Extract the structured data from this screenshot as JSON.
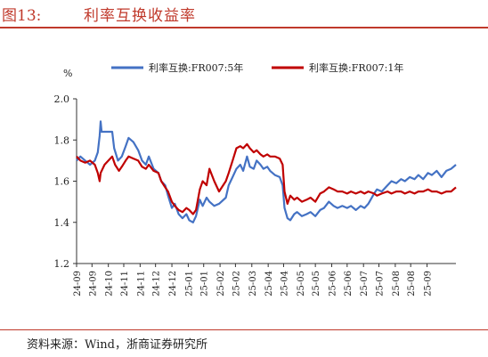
{
  "header": {
    "figure_label": "图13:",
    "title": "利率互换收益率"
  },
  "footer": {
    "source": "资料来源：Wind，浙商证券研究所"
  },
  "colors": {
    "accent": "#c0392b",
    "series_5y": "#4472c4",
    "series_1y": "#c00000"
  },
  "chart_data": {
    "type": "line",
    "ylabel": "%",
    "ylim": [
      1.2,
      2.0
    ],
    "yticks": [
      "2.0",
      "1.8",
      "1.6",
      "1.4",
      "1.2"
    ],
    "xlim": [
      "2024-09-01",
      "2025-09-30"
    ],
    "xticks": [
      "24-09",
      "24-09",
      "24-10",
      "24-11",
      "24-11",
      "24-12",
      "24-12",
      "25-01",
      "25-01",
      "25-02",
      "25-02",
      "25-03",
      "25-04",
      "25-04",
      "25-05",
      "25-05",
      "25-06",
      "25-06",
      "25-07",
      "25-07",
      "25-08",
      "25-08",
      "25-09"
    ],
    "xtick_dates": [
      "2024-09-01",
      "2024-09-17",
      "2024-10-04",
      "2024-10-20",
      "2024-11-06",
      "2024-11-22",
      "2024-12-09",
      "2024-12-26",
      "2025-01-11",
      "2025-01-28",
      "2025-02-13",
      "2025-03-02",
      "2025-03-19",
      "2025-04-04",
      "2025-04-21",
      "2025-05-07",
      "2025-05-24",
      "2025-06-09",
      "2025-06-26",
      "2025-07-12",
      "2025-07-29",
      "2025-08-14",
      "2025-08-31"
    ],
    "grid": false,
    "legend_position": "top",
    "series": [
      {
        "name": "利率互换:FR007:5年",
        "points": [
          [
            "2024-09-01",
            1.7
          ],
          [
            "2024-09-05",
            1.72
          ],
          [
            "2024-09-10",
            1.7
          ],
          [
            "2024-09-15",
            1.68
          ],
          [
            "2024-09-20",
            1.7
          ],
          [
            "2024-09-23",
            1.74
          ],
          [
            "2024-09-25",
            1.82
          ],
          [
            "2024-09-26",
            1.89
          ],
          [
            "2024-09-27",
            1.84
          ],
          [
            "2024-10-01",
            1.84
          ],
          [
            "2024-10-08",
            1.84
          ],
          [
            "2024-10-10",
            1.76
          ],
          [
            "2024-10-14",
            1.7
          ],
          [
            "2024-10-18",
            1.72
          ],
          [
            "2024-10-22",
            1.77
          ],
          [
            "2024-10-25",
            1.81
          ],
          [
            "2024-10-30",
            1.79
          ],
          [
            "2024-11-04",
            1.75
          ],
          [
            "2024-11-08",
            1.7
          ],
          [
            "2024-11-12",
            1.68
          ],
          [
            "2024-11-15",
            1.72
          ],
          [
            "2024-11-20",
            1.66
          ],
          [
            "2024-11-25",
            1.64
          ],
          [
            "2024-11-28",
            1.6
          ],
          [
            "2024-12-02",
            1.58
          ],
          [
            "2024-12-05",
            1.53
          ],
          [
            "2024-12-09",
            1.47
          ],
          [
            "2024-12-12",
            1.49
          ],
          [
            "2024-12-16",
            1.44
          ],
          [
            "2024-12-20",
            1.42
          ],
          [
            "2024-12-24",
            1.44
          ],
          [
            "2024-12-27",
            1.41
          ],
          [
            "2024-12-31",
            1.4
          ],
          [
            "2025-01-03",
            1.43
          ],
          [
            "2025-01-07",
            1.51
          ],
          [
            "2025-01-10",
            1.48
          ],
          [
            "2025-01-14",
            1.52
          ],
          [
            "2025-01-17",
            1.5
          ],
          [
            "2025-01-22",
            1.48
          ],
          [
            "2025-01-27",
            1.49
          ],
          [
            "2025-02-03",
            1.52
          ],
          [
            "2025-02-06",
            1.58
          ],
          [
            "2025-02-10",
            1.62
          ],
          [
            "2025-02-14",
            1.66
          ],
          [
            "2025-02-18",
            1.68
          ],
          [
            "2025-02-21",
            1.65
          ],
          [
            "2025-02-25",
            1.72
          ],
          [
            "2025-02-28",
            1.67
          ],
          [
            "2025-03-04",
            1.66
          ],
          [
            "2025-03-07",
            1.7
          ],
          [
            "2025-03-11",
            1.68
          ],
          [
            "2025-03-14",
            1.66
          ],
          [
            "2025-03-18",
            1.67
          ],
          [
            "2025-03-21",
            1.65
          ],
          [
            "2025-03-26",
            1.63
          ],
          [
            "2025-03-31",
            1.62
          ],
          [
            "2025-04-03",
            1.58
          ],
          [
            "2025-04-05",
            1.47
          ],
          [
            "2025-04-08",
            1.42
          ],
          [
            "2025-04-11",
            1.41
          ],
          [
            "2025-04-15",
            1.44
          ],
          [
            "2025-04-18",
            1.45
          ],
          [
            "2025-04-23",
            1.43
          ],
          [
            "2025-04-28",
            1.44
          ],
          [
            "2025-05-02",
            1.45
          ],
          [
            "2025-05-07",
            1.43
          ],
          [
            "2025-05-12",
            1.46
          ],
          [
            "2025-05-16",
            1.47
          ],
          [
            "2025-05-21",
            1.5
          ],
          [
            "2025-05-26",
            1.48
          ],
          [
            "2025-05-30",
            1.47
          ],
          [
            "2025-06-04",
            1.48
          ],
          [
            "2025-06-09",
            1.47
          ],
          [
            "2025-06-13",
            1.48
          ],
          [
            "2025-06-18",
            1.46
          ],
          [
            "2025-06-23",
            1.48
          ],
          [
            "2025-06-27",
            1.47
          ],
          [
            "2025-07-01",
            1.49
          ],
          [
            "2025-07-07",
            1.54
          ],
          [
            "2025-07-10",
            1.56
          ],
          [
            "2025-07-15",
            1.55
          ],
          [
            "2025-07-21",
            1.58
          ],
          [
            "2025-07-25",
            1.6
          ],
          [
            "2025-07-30",
            1.59
          ],
          [
            "2025-08-04",
            1.61
          ],
          [
            "2025-08-08",
            1.6
          ],
          [
            "2025-08-13",
            1.62
          ],
          [
            "2025-08-18",
            1.61
          ],
          [
            "2025-08-22",
            1.63
          ],
          [
            "2025-08-27",
            1.61
          ],
          [
            "2025-09-01",
            1.64
          ],
          [
            "2025-09-05",
            1.63
          ],
          [
            "2025-09-10",
            1.65
          ],
          [
            "2025-09-15",
            1.62
          ],
          [
            "2025-09-20",
            1.65
          ],
          [
            "2025-09-25",
            1.66
          ],
          [
            "2025-09-30",
            1.68
          ]
        ]
      },
      {
        "name": "利率互换:FR007:1年",
        "points": [
          [
            "2024-09-01",
            1.72
          ],
          [
            "2024-09-05",
            1.7
          ],
          [
            "2024-09-10",
            1.69
          ],
          [
            "2024-09-15",
            1.7
          ],
          [
            "2024-09-20",
            1.68
          ],
          [
            "2024-09-23",
            1.64
          ],
          [
            "2024-09-25",
            1.6
          ],
          [
            "2024-09-26",
            1.64
          ],
          [
            "2024-09-30",
            1.68
          ],
          [
            "2024-10-04",
            1.7
          ],
          [
            "2024-10-08",
            1.72
          ],
          [
            "2024-10-11",
            1.68
          ],
          [
            "2024-10-15",
            1.65
          ],
          [
            "2024-10-18",
            1.67
          ],
          [
            "2024-10-22",
            1.7
          ],
          [
            "2024-10-25",
            1.72
          ],
          [
            "2024-10-30",
            1.71
          ],
          [
            "2024-11-04",
            1.7
          ],
          [
            "2024-11-08",
            1.67
          ],
          [
            "2024-11-12",
            1.66
          ],
          [
            "2024-11-15",
            1.68
          ],
          [
            "2024-11-20",
            1.65
          ],
          [
            "2024-11-25",
            1.64
          ],
          [
            "2024-11-28",
            1.6
          ],
          [
            "2024-12-02",
            1.57
          ],
          [
            "2024-12-05",
            1.55
          ],
          [
            "2024-12-09",
            1.5
          ],
          [
            "2024-12-12",
            1.48
          ],
          [
            "2024-12-16",
            1.46
          ],
          [
            "2024-12-20",
            1.45
          ],
          [
            "2024-12-24",
            1.47
          ],
          [
            "2024-12-27",
            1.46
          ],
          [
            "2024-12-31",
            1.44
          ],
          [
            "2025-01-03",
            1.46
          ],
          [
            "2025-01-07",
            1.56
          ],
          [
            "2025-01-10",
            1.6
          ],
          [
            "2025-01-14",
            1.58
          ],
          [
            "2025-01-17",
            1.66
          ],
          [
            "2025-01-22",
            1.6
          ],
          [
            "2025-01-27",
            1.55
          ],
          [
            "2025-02-03",
            1.6
          ],
          [
            "2025-02-06",
            1.64
          ],
          [
            "2025-02-10",
            1.7
          ],
          [
            "2025-02-14",
            1.76
          ],
          [
            "2025-02-18",
            1.77
          ],
          [
            "2025-02-21",
            1.76
          ],
          [
            "2025-02-25",
            1.78
          ],
          [
            "2025-02-28",
            1.76
          ],
          [
            "2025-03-04",
            1.74
          ],
          [
            "2025-03-07",
            1.75
          ],
          [
            "2025-03-11",
            1.73
          ],
          [
            "2025-03-14",
            1.72
          ],
          [
            "2025-03-18",
            1.73
          ],
          [
            "2025-03-21",
            1.72
          ],
          [
            "2025-03-26",
            1.72
          ],
          [
            "2025-03-31",
            1.71
          ],
          [
            "2025-04-03",
            1.68
          ],
          [
            "2025-04-05",
            1.55
          ],
          [
            "2025-04-08",
            1.49
          ],
          [
            "2025-04-11",
            1.53
          ],
          [
            "2025-04-15",
            1.51
          ],
          [
            "2025-04-18",
            1.52
          ],
          [
            "2025-04-23",
            1.5
          ],
          [
            "2025-04-28",
            1.51
          ],
          [
            "2025-05-02",
            1.52
          ],
          [
            "2025-05-07",
            1.5
          ],
          [
            "2025-05-12",
            1.54
          ],
          [
            "2025-05-16",
            1.55
          ],
          [
            "2025-05-21",
            1.57
          ],
          [
            "2025-05-26",
            1.56
          ],
          [
            "2025-05-30",
            1.55
          ],
          [
            "2025-06-04",
            1.55
          ],
          [
            "2025-06-09",
            1.54
          ],
          [
            "2025-06-13",
            1.55
          ],
          [
            "2025-06-18",
            1.54
          ],
          [
            "2025-06-23",
            1.55
          ],
          [
            "2025-06-27",
            1.54
          ],
          [
            "2025-07-01",
            1.55
          ],
          [
            "2025-07-07",
            1.54
          ],
          [
            "2025-07-10",
            1.53
          ],
          [
            "2025-07-15",
            1.54
          ],
          [
            "2025-07-21",
            1.55
          ],
          [
            "2025-07-25",
            1.54
          ],
          [
            "2025-07-30",
            1.55
          ],
          [
            "2025-08-04",
            1.55
          ],
          [
            "2025-08-08",
            1.54
          ],
          [
            "2025-08-13",
            1.55
          ],
          [
            "2025-08-18",
            1.54
          ],
          [
            "2025-08-22",
            1.55
          ],
          [
            "2025-08-27",
            1.55
          ],
          [
            "2025-09-01",
            1.56
          ],
          [
            "2025-09-05",
            1.55
          ],
          [
            "2025-09-10",
            1.55
          ],
          [
            "2025-09-15",
            1.54
          ],
          [
            "2025-09-20",
            1.55
          ],
          [
            "2025-09-25",
            1.55
          ],
          [
            "2025-09-30",
            1.57
          ]
        ]
      }
    ]
  }
}
